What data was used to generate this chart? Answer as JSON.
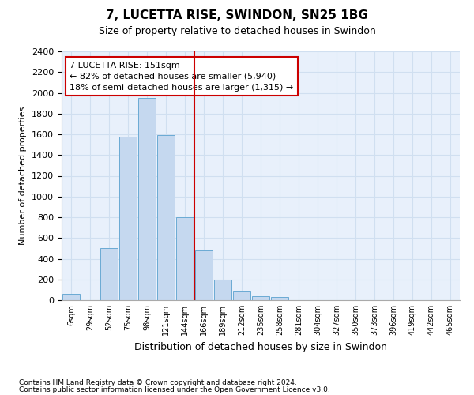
{
  "title": "7, LUCETTA RISE, SWINDON, SN25 1BG",
  "subtitle": "Size of property relative to detached houses in Swindon",
  "xlabel": "Distribution of detached houses by size in Swindon",
  "ylabel": "Number of detached properties",
  "categories": [
    "6sqm",
    "29sqm",
    "52sqm",
    "75sqm",
    "98sqm",
    "121sqm",
    "144sqm",
    "166sqm",
    "189sqm",
    "212sqm",
    "235sqm",
    "258sqm",
    "281sqm",
    "304sqm",
    "327sqm",
    "350sqm",
    "373sqm",
    "396sqm",
    "419sqm",
    "442sqm",
    "465sqm"
  ],
  "bar_heights": [
    60,
    0,
    500,
    1580,
    1950,
    1590,
    800,
    480,
    200,
    95,
    35,
    30,
    0,
    0,
    0,
    0,
    0,
    0,
    0,
    0,
    0
  ],
  "bar_color": "#c5d8ef",
  "bar_edge_color": "#6aaad4",
  "vline_color": "#cc0000",
  "annotation_line1": "7 LUCETTA RISE: 151sqm",
  "annotation_line2": "← 82% of detached houses are smaller (5,940)",
  "annotation_line3": "18% of semi-detached houses are larger (1,315) →",
  "annotation_box_color": "#cc0000",
  "ylim": [
    0,
    2400
  ],
  "yticks": [
    0,
    200,
    400,
    600,
    800,
    1000,
    1200,
    1400,
    1600,
    1800,
    2000,
    2200,
    2400
  ],
  "grid_color": "#d0dff0",
  "bg_color": "#e8f0fb",
  "footnote1": "Contains HM Land Registry data © Crown copyright and database right 2024.",
  "footnote2": "Contains public sector information licensed under the Open Government Licence v3.0.",
  "title_fontsize": 11,
  "subtitle_fontsize": 9
}
